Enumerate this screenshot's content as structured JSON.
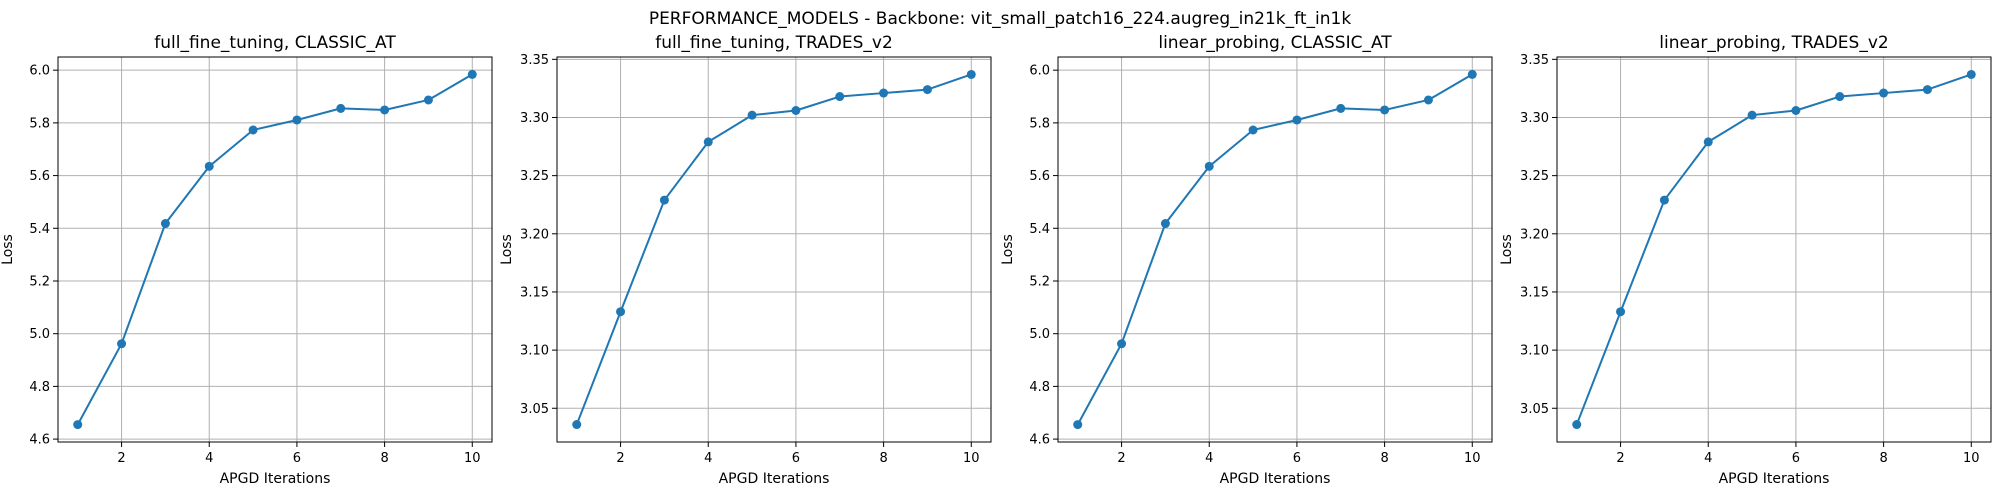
{
  "figure": {
    "suptitle": "PERFORMANCE_MODELS - Backbone: vit_small_patch16_224.augreg_in21k_ft_in1k",
    "line_color": "#1f77b4",
    "grid_color": "#b0b0b0"
  },
  "chart_data": [
    {
      "type": "line",
      "title": "full_fine_tuning, CLASSIC_AT",
      "xlabel": "APGD Iterations",
      "ylabel": "Loss",
      "x": [
        1,
        2,
        3,
        4,
        5,
        6,
        7,
        8,
        9,
        10
      ],
      "series": [
        {
          "values": [
            4.655,
            4.962,
            5.418,
            5.635,
            5.773,
            5.811,
            5.855,
            5.849,
            5.887,
            5.984
          ]
        }
      ],
      "xlim": [
        0.55,
        10.45
      ],
      "ylim": [
        4.589,
        6.05
      ],
      "xticks": [
        2,
        4,
        6,
        8,
        10
      ],
      "yticks": [
        4.6,
        4.8,
        5.0,
        5.2,
        5.4,
        5.6,
        5.8,
        6.0
      ],
      "ytick_labels": [
        "4.6",
        "4.8",
        "5.0",
        "5.2",
        "5.4",
        "5.6",
        "5.8",
        "6.0"
      ],
      "grid": true
    },
    {
      "type": "line",
      "title": "full_fine_tuning, TRADES_v2",
      "xlabel": "APGD Iterations",
      "ylabel": "Loss",
      "x": [
        1,
        2,
        3,
        4,
        5,
        6,
        7,
        8,
        9,
        10
      ],
      "series": [
        {
          "values": [
            3.036,
            3.133,
            3.229,
            3.279,
            3.302,
            3.306,
            3.318,
            3.321,
            3.324,
            3.337
          ]
        }
      ],
      "xlim": [
        0.55,
        10.45
      ],
      "ylim": [
        3.021,
        3.352
      ],
      "xticks": [
        2,
        4,
        6,
        8,
        10
      ],
      "yticks": [
        3.05,
        3.1,
        3.15,
        3.2,
        3.25,
        3.3,
        3.35
      ],
      "ytick_labels": [
        "3.05",
        "3.10",
        "3.15",
        "3.20",
        "3.25",
        "3.30",
        "3.35"
      ],
      "grid": true
    },
    {
      "type": "line",
      "title": "linear_probing, CLASSIC_AT",
      "xlabel": "APGD Iterations",
      "ylabel": "Loss",
      "x": [
        1,
        2,
        3,
        4,
        5,
        6,
        7,
        8,
        9,
        10
      ],
      "series": [
        {
          "values": [
            4.655,
            4.962,
            5.418,
            5.635,
            5.773,
            5.811,
            5.855,
            5.849,
            5.887,
            5.984
          ]
        }
      ],
      "xlim": [
        0.55,
        10.45
      ],
      "ylim": [
        4.589,
        6.05
      ],
      "xticks": [
        2,
        4,
        6,
        8,
        10
      ],
      "yticks": [
        4.6,
        4.8,
        5.0,
        5.2,
        5.4,
        5.6,
        5.8,
        6.0
      ],
      "ytick_labels": [
        "4.6",
        "4.8",
        "5.0",
        "5.2",
        "5.4",
        "5.6",
        "5.8",
        "6.0"
      ],
      "grid": true
    },
    {
      "type": "line",
      "title": "linear_probing, TRADES_v2",
      "xlabel": "APGD Iterations",
      "ylabel": "Loss",
      "x": [
        1,
        2,
        3,
        4,
        5,
        6,
        7,
        8,
        9,
        10
      ],
      "series": [
        {
          "values": [
            3.036,
            3.133,
            3.229,
            3.279,
            3.302,
            3.306,
            3.318,
            3.321,
            3.324,
            3.337
          ]
        }
      ],
      "xlim": [
        0.55,
        10.45
      ],
      "ylim": [
        3.021,
        3.352
      ],
      "xticks": [
        2,
        4,
        6,
        8,
        10
      ],
      "yticks": [
        3.05,
        3.1,
        3.15,
        3.2,
        3.25,
        3.3,
        3.35
      ],
      "ytick_labels": [
        "3.05",
        "3.10",
        "3.15",
        "3.20",
        "3.25",
        "3.30",
        "3.35"
      ],
      "grid": true
    }
  ]
}
